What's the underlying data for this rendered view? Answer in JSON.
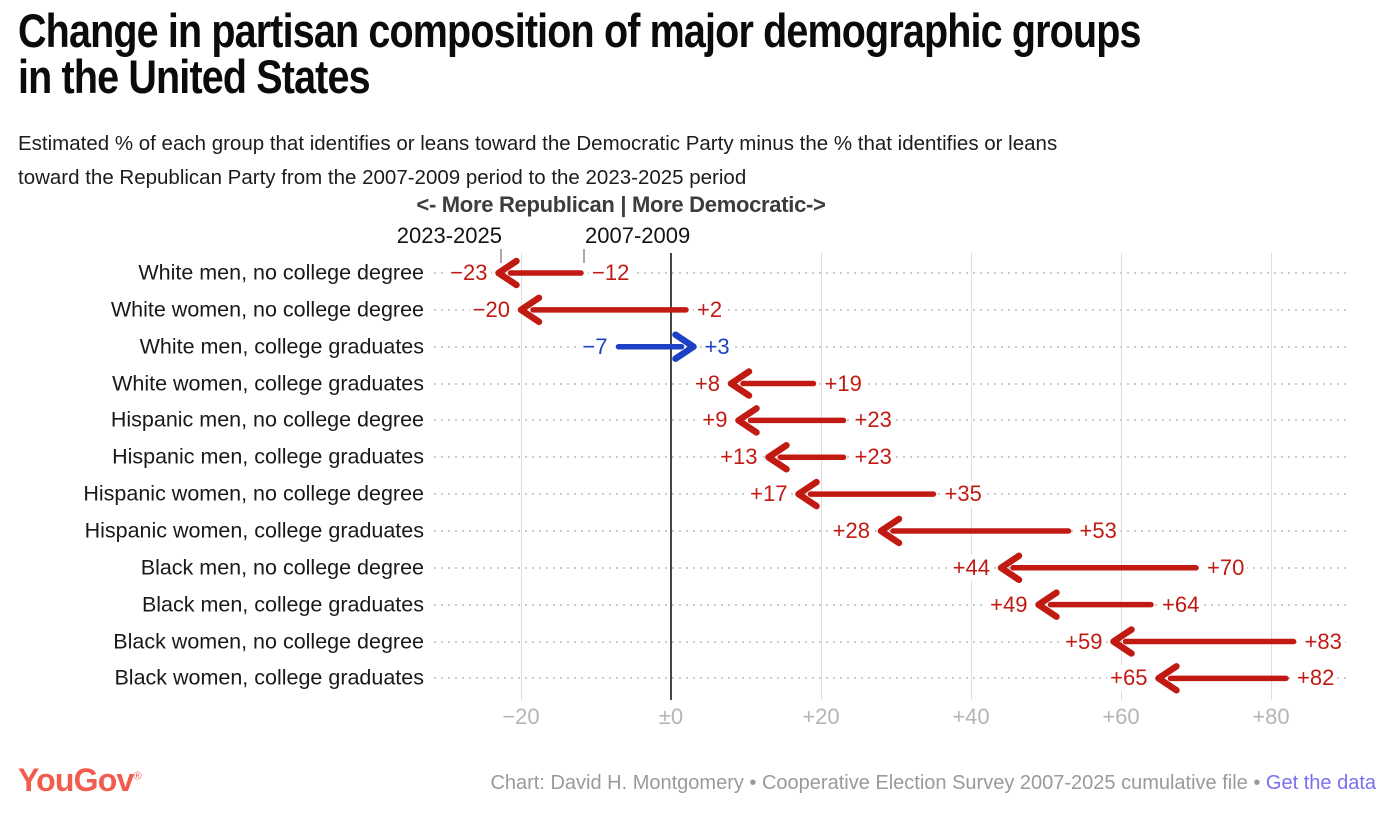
{
  "header": {
    "title_line1": "Change in partisan composition of major demographic groups",
    "title_line2": "in the United States",
    "subtitle_line1": "Estimated % of each group that identifies or leans toward the Democratic Party minus the % that identifies or leans",
    "subtitle_line2": "toward the Republican Party from the 2007-2009 period to the 2023-2025 period",
    "direction_header": "<- More Republican | More Democratic->",
    "period_label_new": "2023-2025",
    "period_label_old": "2007-2009"
  },
  "chart_data": {
    "type": "arrow",
    "description": "Arrow chart; each row shows Democratic-lean margin moving from the 2007-2009 value (arrow tail) to the 2023-2025 value (arrow head)",
    "x_axis": {
      "tick_labels": [
        "−20",
        "±0",
        "+20",
        "+40",
        "+60",
        "+80"
      ],
      "tick_values": [
        -20,
        0,
        20,
        40,
        60,
        80
      ],
      "xlim": [
        -32,
        92
      ],
      "grid": true
    },
    "colors": {
      "red": "#c11a12",
      "blue": "#1c41c4"
    },
    "rows": [
      {
        "label": "White men, no college degree",
        "start": -12,
        "end": -23,
        "start_label": "−12",
        "end_label": "−23",
        "color": "red"
      },
      {
        "label": "White women, no college degree",
        "start": 2,
        "end": -20,
        "start_label": "+2",
        "end_label": "−20",
        "color": "red"
      },
      {
        "label": "White men, college graduates",
        "start": -7,
        "end": 3,
        "start_label": "−7",
        "end_label": "+3",
        "color": "blue"
      },
      {
        "label": "White women, college graduates",
        "start": 19,
        "end": 8,
        "start_label": "+19",
        "end_label": "+8",
        "color": "red"
      },
      {
        "label": "Hispanic men, no college degree",
        "start": 23,
        "end": 9,
        "start_label": "+23",
        "end_label": "+9",
        "color": "red"
      },
      {
        "label": "Hispanic men, college graduates",
        "start": 23,
        "end": 13,
        "start_label": "+23",
        "end_label": "+13",
        "color": "red"
      },
      {
        "label": "Hispanic women, no college degree",
        "start": 35,
        "end": 17,
        "start_label": "+35",
        "end_label": "+17",
        "color": "red"
      },
      {
        "label": "Hispanic women, college graduates",
        "start": 53,
        "end": 28,
        "start_label": "+53",
        "end_label": "+28",
        "color": "red"
      },
      {
        "label": "Black men, no college degree",
        "start": 70,
        "end": 44,
        "start_label": "+70",
        "end_label": "+44",
        "color": "red"
      },
      {
        "label": "Black men, college graduates",
        "start": 64,
        "end": 49,
        "start_label": "+64",
        "end_label": "+49",
        "color": "red"
      },
      {
        "label": "Black women, no college degree",
        "start": 83,
        "end": 59,
        "start_label": "+83",
        "end_label": "+59",
        "color": "red"
      },
      {
        "label": "Black women, college graduates",
        "start": 82,
        "end": 65,
        "start_label": "+82",
        "end_label": "+65",
        "color": "red"
      }
    ]
  },
  "footer": {
    "logo_text": "YouGov",
    "registered_mark": "®",
    "credit": "Chart: David H. Montgomery • Cooperative Election Survey 2007-2025 cumulative file • ",
    "link_label": "Get the data"
  }
}
